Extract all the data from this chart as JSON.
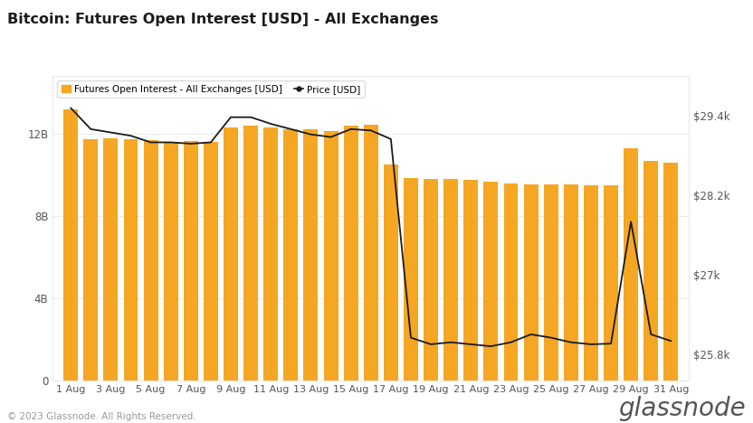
{
  "title": "Bitcoin: Futures Open Interest [USD] - All Exchanges",
  "legend_bar": "Futures Open Interest - All Exchanges [USD]",
  "legend_line": "Price [USD]",
  "bar_color": "#F5A623",
  "line_color": "#1a1a1a",
  "background_color": "#ffffff",
  "plot_bg_color": "#ffffff",
  "grid_color": "#e8e8e8",
  "yticks_left": [
    0,
    4000000000,
    8000000000,
    12000000000
  ],
  "yticks_left_labels": [
    "0",
    "4B",
    "8B",
    "12B"
  ],
  "ylim_left": [
    0,
    14800000000
  ],
  "yticks_right": [
    25800,
    27000,
    28200,
    29400
  ],
  "yticks_right_labels": [
    "$25.8k",
    "$27k",
    "$28.2k",
    "$29.4k"
  ],
  "ylim_right": [
    25400,
    30000
  ],
  "copyright": "© 2023 Glassnode. All Rights Reserved.",
  "watermark": "glassnode",
  "bar_dates": [
    1,
    2,
    3,
    4,
    5,
    6,
    7,
    8,
    9,
    10,
    11,
    12,
    13,
    14,
    15,
    16,
    17,
    18,
    19,
    20,
    21,
    22,
    23,
    24,
    25,
    26,
    27,
    28,
    29,
    30,
    31
  ],
  "open_interest": [
    13200000000,
    11750000000,
    11800000000,
    11750000000,
    11700000000,
    11600000000,
    11650000000,
    11600000000,
    12300000000,
    12400000000,
    12300000000,
    12200000000,
    12200000000,
    12150000000,
    12400000000,
    12450000000,
    10500000000,
    9850000000,
    9800000000,
    9800000000,
    9750000000,
    9650000000,
    9600000000,
    9550000000,
    9550000000,
    9550000000,
    9500000000,
    9500000000,
    11300000000,
    10700000000,
    10600000000
  ],
  "price": [
    29520,
    29200,
    29150,
    29100,
    29000,
    29000,
    28980,
    29000,
    29380,
    29380,
    29280,
    29200,
    29120,
    29080,
    29200,
    29180,
    29050,
    26050,
    25950,
    25980,
    25950,
    25920,
    25980,
    26100,
    26050,
    25980,
    25950,
    25960,
    27800,
    26100,
    26000
  ],
  "xtick_positions": [
    1,
    3,
    5,
    7,
    9,
    11,
    13,
    15,
    17,
    19,
    21,
    23,
    25,
    27,
    29,
    31
  ],
  "xtick_labels": [
    "1 Aug",
    "3 Aug",
    "5 Aug",
    "7 Aug",
    "9 Aug",
    "11 Aug",
    "13 Aug",
    "15 Aug",
    "17 Aug",
    "19 Aug",
    "21 Aug",
    "23 Aug",
    "25 Aug",
    "27 Aug",
    "29 Aug",
    "31 Aug"
  ]
}
